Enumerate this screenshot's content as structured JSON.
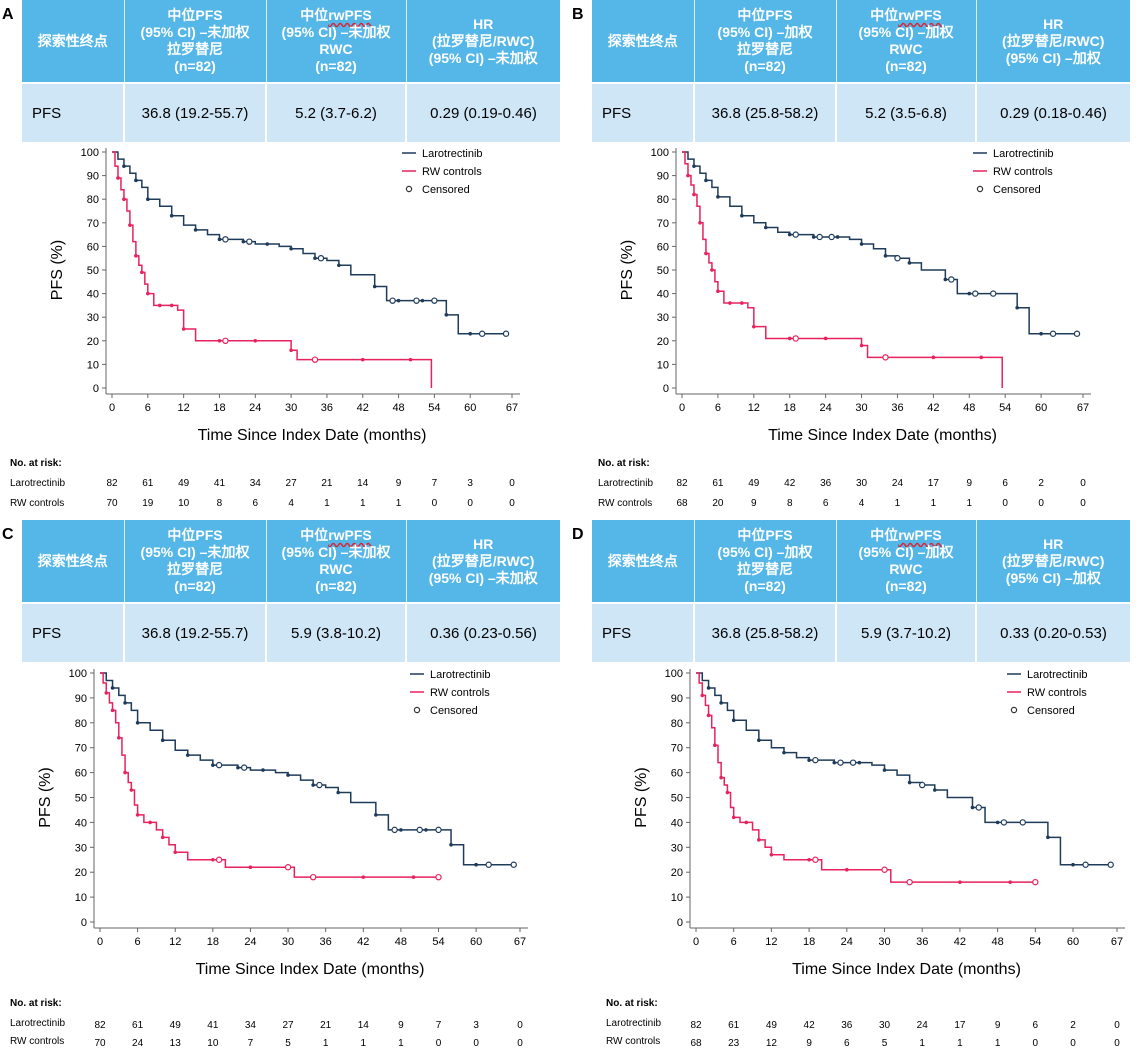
{
  "colors": {
    "header_bg": "#55b6e8",
    "value_bg": "#cfe6f7",
    "larotrectinib": "#1f3b5a",
    "rw_controls": "#e8225e"
  },
  "table_headers": {
    "endpoint": "探索性终点",
    "lar_line1": "中位PFS",
    "rwc_line1_prefix": "中位",
    "rwc_line1_wavy": "rwPFS",
    "hr_line1": "HR",
    "hr_line2": "(拉罗替尼/RWC)",
    "n": "(n=82)",
    "lar_line3": "拉罗替尼",
    "rwc_line3": "RWC"
  },
  "risk_labels": {
    "title": "No. at risk:",
    "lar": "Larotrectinib",
    "rwc": "RW controls"
  },
  "panels": [
    {
      "letter": "A",
      "headers": {
        "lar_line2": "(95% CI) –未加权",
        "rwc_line2": "(95% CI) –未加权",
        "hr_line3": "(95% CI) –未加权"
      },
      "row": {
        "label": "PFS",
        "lar": "36.8 (19.2-55.7)",
        "rwc": "5.2 (3.7-6.2)",
        "hr": "0.29 (0.19-0.46)"
      },
      "risk": {
        "lar": [
          "82",
          "61",
          "49",
          "41",
          "34",
          "27",
          "21",
          "14",
          "9",
          "7",
          "3",
          "0"
        ],
        "rwc": [
          "70",
          "19",
          "10",
          "8",
          "6",
          "4",
          "1",
          "1",
          "1",
          "0",
          "0",
          "0"
        ]
      }
    },
    {
      "letter": "B",
      "headers": {
        "lar_line2": "(95% CI) –加权",
        "rwc_line2": "(95% CI) –加权",
        "hr_line3": "(95% CI) –加权"
      },
      "row": {
        "label": "PFS",
        "lar": "36.8 (25.8-58.2)",
        "rwc": "5.2 (3.5-6.8)",
        "hr": "0.29 (0.18-0.46)"
      },
      "risk": {
        "lar": [
          "82",
          "61",
          "49",
          "42",
          "36",
          "30",
          "24",
          "17",
          "9",
          "6",
          "2",
          "0"
        ],
        "rwc": [
          "68",
          "20",
          "9",
          "8",
          "6",
          "4",
          "1",
          "1",
          "1",
          "0",
          "0",
          "0"
        ]
      }
    },
    {
      "letter": "C",
      "headers": {
        "lar_line2": "(95% CI) –未加权",
        "rwc_line2": "(95% CI) –未加权",
        "hr_line3": "(95% CI) –未加权"
      },
      "row": {
        "label": "PFS",
        "lar": "36.8 (19.2-55.7)",
        "rwc": "5.9 (3.8-10.2)",
        "hr": "0.36 (0.23-0.56)"
      },
      "risk": {
        "lar": [
          "82",
          "61",
          "49",
          "41",
          "34",
          "27",
          "21",
          "14",
          "9",
          "7",
          "3",
          "0"
        ],
        "rwc": [
          "70",
          "24",
          "13",
          "10",
          "7",
          "5",
          "1",
          "1",
          "1",
          "0",
          "0",
          "0"
        ]
      }
    },
    {
      "letter": "D",
      "headers": {
        "lar_line2": "(95% CI) –加权",
        "rwc_line2": "(95% CI) –加权",
        "hr_line3": "(95% CI) –加权"
      },
      "row": {
        "label": "PFS",
        "lar": "36.8 (25.8-58.2)",
        "rwc": "5.9 (3.7-10.2)",
        "hr": "0.33 (0.20-0.53)"
      },
      "risk": {
        "lar": [
          "82",
          "61",
          "49",
          "42",
          "36",
          "30",
          "24",
          "17",
          "9",
          "6",
          "2",
          "0"
        ],
        "rwc": [
          "68",
          "23",
          "12",
          "9",
          "6",
          "5",
          "1",
          "1",
          "1",
          "0",
          "0",
          "0"
        ]
      }
    }
  ],
  "chart_data": [
    {
      "panel": "A",
      "type": "line",
      "xlabel": "Time Since Index Date (months)",
      "ylabel": "PFS (%)",
      "xticks": [
        "0",
        "6",
        "12",
        "18",
        "24",
        "30",
        "36",
        "42",
        "48",
        "54",
        "60",
        "67"
      ],
      "yticks": [
        "0",
        "10",
        "20",
        "30",
        "40",
        "50",
        "60",
        "70",
        "80",
        "90",
        "100"
      ],
      "xlim": [
        0,
        67
      ],
      "ylim": [
        0,
        100
      ],
      "legend": [
        "Larotrectinib",
        "RW controls",
        "Censored"
      ],
      "series": [
        {
          "name": "Larotrectinib",
          "x": [
            0,
            1,
            2,
            3,
            4,
            5,
            6,
            8,
            10,
            12,
            14,
            16,
            18,
            20,
            22,
            24,
            26,
            28,
            30,
            32,
            34,
            36,
            38,
            40,
            44,
            46,
            48,
            50,
            52,
            54,
            56,
            58,
            60,
            62,
            66
          ],
          "y": [
            100,
            97,
            94,
            91,
            88,
            85,
            80,
            77,
            73,
            69,
            67,
            65,
            63,
            63,
            62,
            61,
            61,
            60,
            59,
            57,
            55,
            54,
            52,
            48,
            43,
            37,
            37,
            37,
            37,
            37,
            31,
            23,
            23,
            23,
            23
          ],
          "censored_x": [
            19,
            23,
            35,
            47,
            51,
            54,
            62,
            66
          ]
        },
        {
          "name": "RW controls",
          "x": [
            0,
            0.5,
            1,
            1.5,
            2,
            2.5,
            3,
            3.5,
            4,
            4.5,
            5,
            5.5,
            6,
            7,
            8,
            9,
            10,
            11,
            12,
            14,
            18,
            20,
            24,
            28,
            30,
            31,
            34,
            38,
            42,
            46,
            50,
            53,
            53.5
          ],
          "y": [
            100,
            94,
            89,
            84,
            80,
            75,
            69,
            62,
            56,
            52,
            49,
            44,
            40,
            35,
            35,
            35,
            35,
            33,
            25,
            20,
            20,
            20,
            20,
            20,
            16,
            12,
            12,
            12,
            12,
            12,
            12,
            12,
            0
          ],
          "censored_x": [
            19,
            34
          ]
        }
      ]
    },
    {
      "panel": "B",
      "type": "line",
      "xlabel": "Time Since Index Date (months)",
      "ylabel": "PFS (%)",
      "xticks": [
        "0",
        "6",
        "12",
        "18",
        "24",
        "30",
        "36",
        "42",
        "48",
        "54",
        "60",
        "67"
      ],
      "yticks": [
        "0",
        "10",
        "20",
        "30",
        "40",
        "50",
        "60",
        "70",
        "80",
        "90",
        "100"
      ],
      "xlim": [
        0,
        67
      ],
      "ylim": [
        0,
        100
      ],
      "legend": [
        "Larotrectinib",
        "RW controls",
        "Censored"
      ],
      "series": [
        {
          "name": "Larotrectinib",
          "x": [
            0,
            1,
            2,
            3,
            4,
            5,
            6,
            8,
            10,
            12,
            14,
            16,
            18,
            20,
            22,
            24,
            26,
            28,
            30,
            32,
            34,
            36,
            38,
            40,
            44,
            46,
            48,
            50,
            52,
            54,
            56,
            58,
            60,
            62,
            66
          ],
          "y": [
            100,
            97,
            94,
            91,
            88,
            85,
            81,
            77,
            73,
            70,
            68,
            66,
            65,
            65,
            64,
            64,
            64,
            63,
            61,
            59,
            56,
            55,
            53,
            50,
            46,
            40,
            40,
            40,
            40,
            40,
            34,
            23,
            23,
            23,
            23
          ],
          "censored_x": [
            19,
            23,
            25,
            36,
            45,
            49,
            52,
            62,
            66
          ]
        },
        {
          "name": "RW controls",
          "x": [
            0,
            0.5,
            1,
            1.5,
            2,
            2.5,
            3,
            3.5,
            4,
            4.5,
            5,
            5.5,
            6,
            7,
            8,
            9,
            10,
            11,
            12,
            14,
            18,
            20,
            24,
            28,
            30,
            31,
            34,
            38,
            42,
            46,
            50,
            53,
            53.5
          ],
          "y": [
            100,
            95,
            90,
            86,
            82,
            77,
            70,
            63,
            57,
            53,
            50,
            45,
            41,
            36,
            36,
            36,
            36,
            34,
            26,
            21,
            21,
            21,
            21,
            21,
            18,
            13,
            13,
            13,
            13,
            13,
            13,
            13,
            0
          ],
          "censored_x": [
            19,
            34
          ]
        }
      ]
    },
    {
      "panel": "C",
      "type": "line",
      "xlabel": "Time Since Index Date (months)",
      "ylabel": "PFS (%)",
      "xticks": [
        "0",
        "6",
        "12",
        "18",
        "24",
        "30",
        "36",
        "42",
        "48",
        "54",
        "60",
        "67"
      ],
      "yticks": [
        "0",
        "10",
        "20",
        "30",
        "40",
        "50",
        "60",
        "70",
        "80",
        "90",
        "100"
      ],
      "xlim": [
        0,
        67
      ],
      "ylim": [
        0,
        100
      ],
      "legend": [
        "Larotrectinib",
        "RW controls",
        "Censored"
      ],
      "series": [
        {
          "name": "Larotrectinib",
          "x": [
            0,
            1,
            2,
            3,
            4,
            5,
            6,
            8,
            10,
            12,
            14,
            16,
            18,
            20,
            22,
            24,
            26,
            28,
            30,
            32,
            34,
            36,
            38,
            40,
            44,
            46,
            48,
            50,
            52,
            54,
            56,
            58,
            60,
            62,
            66
          ],
          "y": [
            100,
            97,
            94,
            91,
            88,
            85,
            80,
            77,
            73,
            69,
            67,
            65,
            63,
            63,
            62,
            61,
            61,
            60,
            59,
            57,
            55,
            54,
            52,
            48,
            43,
            37,
            37,
            37,
            37,
            37,
            31,
            23,
            23,
            23,
            23
          ],
          "censored_x": [
            19,
            23,
            35,
            47,
            51,
            54,
            62,
            66
          ]
        },
        {
          "name": "RW controls",
          "x": [
            0,
            0.5,
            1,
            1.5,
            2,
            2.5,
            3,
            3.5,
            4,
            4.5,
            5,
            5.5,
            6,
            7,
            8,
            9,
            10,
            11,
            12,
            14,
            18,
            20,
            24,
            28,
            30,
            31,
            34,
            38,
            42,
            46,
            50,
            54
          ],
          "y": [
            100,
            96,
            92,
            88,
            85,
            80,
            74,
            67,
            60,
            56,
            53,
            47,
            43,
            40,
            40,
            37,
            34,
            31,
            28,
            25,
            25,
            22,
            22,
            22,
            22,
            18,
            18,
            18,
            18,
            18,
            18,
            18
          ],
          "censored_x": [
            19,
            30,
            34,
            54
          ]
        }
      ]
    },
    {
      "panel": "D",
      "type": "line",
      "xlabel": "Time Since Index Date (months)",
      "ylabel": "PFS (%)",
      "xticks": [
        "0",
        "6",
        "12",
        "18",
        "24",
        "30",
        "36",
        "42",
        "48",
        "54",
        "60",
        "67"
      ],
      "yticks": [
        "0",
        "10",
        "20",
        "30",
        "40",
        "50",
        "60",
        "70",
        "80",
        "90",
        "100"
      ],
      "xlim": [
        0,
        67
      ],
      "ylim": [
        0,
        100
      ],
      "legend": [
        "Larotrectinib",
        "RW controls",
        "Censored"
      ],
      "series": [
        {
          "name": "Larotrectinib",
          "x": [
            0,
            1,
            2,
            3,
            4,
            5,
            6,
            8,
            10,
            12,
            14,
            16,
            18,
            20,
            22,
            24,
            26,
            28,
            30,
            32,
            34,
            36,
            38,
            40,
            44,
            46,
            48,
            50,
            52,
            54,
            56,
            58,
            60,
            62,
            66
          ],
          "y": [
            100,
            97,
            94,
            91,
            88,
            85,
            81,
            77,
            73,
            70,
            68,
            66,
            65,
            65,
            64,
            64,
            64,
            63,
            61,
            59,
            56,
            55,
            53,
            50,
            46,
            40,
            40,
            40,
            40,
            40,
            34,
            23,
            23,
            23,
            23
          ],
          "censored_x": [
            19,
            23,
            25,
            36,
            45,
            49,
            52,
            62,
            66
          ]
        },
        {
          "name": "RW controls",
          "x": [
            0,
            0.5,
            1,
            1.5,
            2,
            2.5,
            3,
            3.5,
            4,
            4.5,
            5,
            5.5,
            6,
            7,
            8,
            9,
            10,
            11,
            12,
            14,
            18,
            20,
            24,
            28,
            30,
            31,
            34,
            38,
            42,
            46,
            50,
            54
          ],
          "y": [
            100,
            96,
            91,
            87,
            83,
            78,
            71,
            64,
            58,
            55,
            52,
            46,
            42,
            40,
            40,
            37,
            33,
            30,
            27,
            25,
            25,
            21,
            21,
            21,
            21,
            16,
            16,
            16,
            16,
            16,
            16,
            16
          ],
          "censored_x": [
            19,
            30,
            34,
            54
          ]
        }
      ]
    }
  ]
}
